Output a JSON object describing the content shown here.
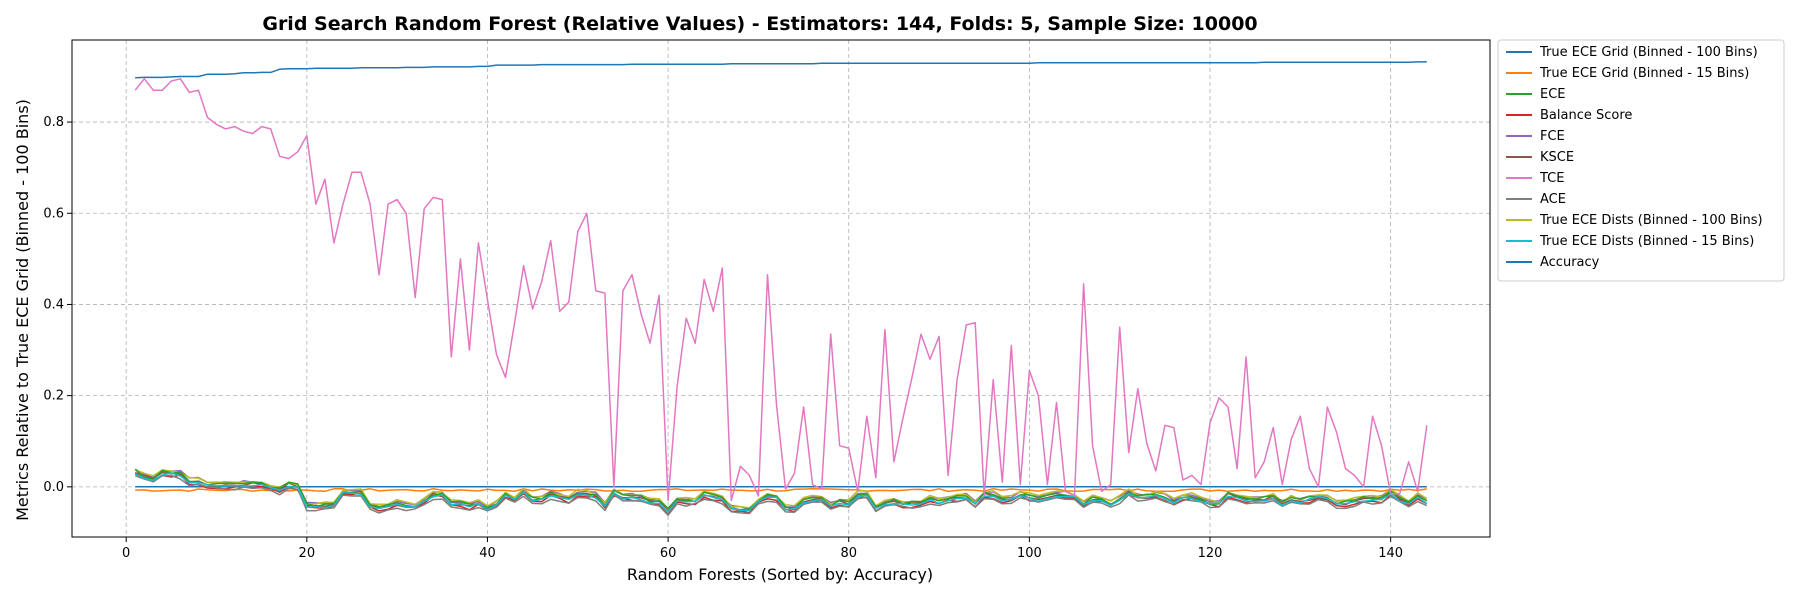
{
  "chart_data": {
    "type": "line",
    "title": "Grid Search Random Forest (Relative Values) - Estimators: 144, Folds: 5, Sample Size: 10000",
    "xlabel": "Random Forests (Sorted by: Accuracy)",
    "ylabel": "Metrics Relative to True ECE Grid (Binned - 100 Bins)",
    "xlim": [
      -6,
      151
    ],
    "ylim": [
      -0.11,
      0.98
    ],
    "xticks": [
      0,
      20,
      40,
      60,
      80,
      100,
      120,
      140
    ],
    "yticks": [
      0.0,
      0.2,
      0.4,
      0.6,
      0.8
    ],
    "grid": true,
    "legend_position": "outside-top-right",
    "series": [
      {
        "name": "True ECE Grid (Binned - 100 Bins)",
        "color": "#1f77b4",
        "kind": "flat",
        "value": 0.0
      },
      {
        "name": "True ECE Grid (Binned - 15 Bins)",
        "color": "#ff7f0e",
        "kind": "shift",
        "base": 0.0,
        "offset": 0.0,
        "jitter": 0.003
      },
      {
        "name": "ECE",
        "color": "#2ca02c",
        "kind": "shift",
        "base": 0.0,
        "offset": 0.0,
        "jitter": 0.004
      },
      {
        "name": "Balance Score",
        "color": "#d62728",
        "kind": "shift",
        "base": 0.0,
        "offset": -0.007,
        "jitter": 0.004
      },
      {
        "name": "FCE",
        "color": "#9467bd",
        "kind": "shift",
        "base": 0.0,
        "offset": 0.003,
        "jitter": 0.003
      },
      {
        "name": "KSCE",
        "color": "#8c564b",
        "kind": "shift",
        "base": 0.0,
        "offset": -0.002,
        "jitter": 0.003
      },
      {
        "name": "TCE",
        "color": "#e377c2",
        "kind": "tce"
      },
      {
        "name": "ACE",
        "color": "#7f7f7f",
        "kind": "shift",
        "base": 0.0,
        "offset": -0.01,
        "jitter": 0.003
      },
      {
        "name": "True ECE Dists (Binned - 100 Bins)",
        "color": "#bcbd22",
        "kind": "shift",
        "base": 0.0,
        "offset": 0.004,
        "jitter": 0.003
      },
      {
        "name": "True ECE Dists (Binned - 15 Bins)",
        "color": "#17becf",
        "kind": "shift",
        "base": 0.0,
        "offset": -0.004,
        "jitter": 0.003
      },
      {
        "name": "Accuracy",
        "color": "#1f77b4",
        "kind": "accuracy"
      }
    ],
    "base_small_values": [
      0.035,
      0.025,
      0.02,
      0.033,
      0.032,
      0.03,
      0.015,
      0.015,
      0.007,
      0.005,
      0.006,
      0.006,
      0.008,
      0.008,
      0.007,
      0.0,
      -0.005,
      0.008,
      0.003,
      -0.04,
      -0.04,
      -0.04,
      -0.038,
      -0.01,
      -0.01,
      -0.01,
      -0.04,
      -0.045,
      -0.042,
      -0.035,
      -0.04,
      -0.04,
      -0.03,
      -0.015,
      -0.015,
      -0.035,
      -0.035,
      -0.04,
      -0.035,
      -0.045,
      -0.035,
      -0.015,
      -0.025,
      -0.01,
      -0.025,
      -0.025,
      -0.015,
      -0.02,
      -0.025,
      -0.012,
      -0.015,
      -0.018,
      -0.04,
      -0.01,
      -0.02,
      -0.02,
      -0.022,
      -0.03,
      -0.03,
      -0.05,
      -0.03,
      -0.03,
      -0.028,
      -0.015,
      -0.02,
      -0.025,
      -0.045,
      -0.048,
      -0.048,
      -0.03,
      -0.02,
      -0.022,
      -0.045,
      -0.045,
      -0.03,
      -0.025,
      -0.025,
      -0.04,
      -0.03,
      -0.035,
      -0.015,
      -0.015,
      -0.045,
      -0.035,
      -0.03,
      -0.035,
      -0.035,
      -0.035,
      -0.025,
      -0.03,
      -0.025,
      -0.022,
      -0.02,
      -0.035,
      -0.015,
      -0.015,
      -0.025,
      -0.025,
      -0.015,
      -0.02,
      -0.025,
      -0.02,
      -0.015,
      -0.015,
      -0.02,
      -0.035,
      -0.025,
      -0.025,
      -0.035,
      -0.025,
      -0.01,
      -0.02,
      -0.02,
      -0.015,
      -0.02,
      -0.03,
      -0.02,
      -0.02,
      -0.025,
      -0.035,
      -0.035,
      -0.015,
      -0.02,
      -0.025,
      -0.025,
      -0.025,
      -0.02,
      -0.035,
      -0.025,
      -0.03,
      -0.025,
      -0.02,
      -0.025,
      -0.035,
      -0.035,
      -0.03,
      -0.025,
      -0.025,
      -0.025,
      -0.01,
      -0.025,
      -0.035,
      -0.02,
      -0.03
    ],
    "tce_values": [
      0.87,
      0.895,
      0.87,
      0.87,
      0.89,
      0.895,
      0.865,
      0.87,
      0.81,
      0.795,
      0.785,
      0.79,
      0.78,
      0.775,
      0.79,
      0.785,
      0.725,
      0.72,
      0.735,
      0.77,
      0.62,
      0.675,
      0.535,
      0.62,
      0.69,
      0.69,
      0.62,
      0.465,
      0.62,
      0.63,
      0.6,
      0.415,
      0.61,
      0.635,
      0.63,
      0.285,
      0.5,
      0.3,
      0.535,
      0.41,
      0.29,
      0.24,
      0.36,
      0.485,
      0.39,
      0.45,
      0.54,
      0.385,
      0.405,
      0.56,
      0.6,
      0.43,
      0.425,
      0.0,
      0.43,
      0.465,
      0.38,
      0.315,
      0.42,
      -0.03,
      0.22,
      0.37,
      0.315,
      0.455,
      0.385,
      0.48,
      -0.03,
      0.045,
      0.025,
      -0.02,
      0.465,
      0.18,
      -0.005,
      0.03,
      0.175,
      0.005,
      -0.005,
      0.335,
      0.09,
      0.085,
      -0.01,
      0.155,
      0.02,
      0.345,
      0.055,
      0.15,
      0.24,
      0.335,
      0.28,
      0.33,
      0.025,
      0.235,
      0.355,
      0.36,
      -0.02,
      0.235,
      0.01,
      0.31,
      0.005,
      0.255,
      0.2,
      0.005,
      0.185,
      -0.01,
      -0.02,
      0.445,
      0.09,
      -0.01,
      0.005,
      0.35,
      0.075,
      0.215,
      0.095,
      0.035,
      0.135,
      0.13,
      0.015,
      0.025,
      0.005,
      0.14,
      0.195,
      0.175,
      0.04,
      0.285,
      0.02,
      0.055,
      0.13,
      0.005,
      0.105,
      0.155,
      0.04,
      0.0,
      0.175,
      0.12,
      0.04,
      0.025,
      0.0,
      0.155,
      0.09,
      -0.015,
      -0.015,
      0.055,
      -0.01,
      0.135
    ],
    "accuracy_values": [
      0.897,
      0.898,
      0.898,
      0.898,
      0.899,
      0.9,
      0.9,
      0.9,
      0.905,
      0.905,
      0.905,
      0.906,
      0.908,
      0.908,
      0.909,
      0.909,
      0.916,
      0.917,
      0.917,
      0.917,
      0.918,
      0.918,
      0.918,
      0.918,
      0.918,
      0.919,
      0.919,
      0.919,
      0.919,
      0.919,
      0.92,
      0.92,
      0.92,
      0.921,
      0.921,
      0.921,
      0.921,
      0.921,
      0.922,
      0.922,
      0.925,
      0.925,
      0.925,
      0.925,
      0.925,
      0.926,
      0.926,
      0.926,
      0.926,
      0.926,
      0.926,
      0.926,
      0.926,
      0.926,
      0.926,
      0.927,
      0.927,
      0.927,
      0.927,
      0.927,
      0.927,
      0.927,
      0.927,
      0.927,
      0.927,
      0.927,
      0.928,
      0.928,
      0.928,
      0.928,
      0.928,
      0.928,
      0.928,
      0.928,
      0.928,
      0.928,
      0.929,
      0.929,
      0.929,
      0.929,
      0.929,
      0.929,
      0.929,
      0.929,
      0.929,
      0.929,
      0.929,
      0.929,
      0.929,
      0.929,
      0.929,
      0.929,
      0.929,
      0.929,
      0.929,
      0.929,
      0.929,
      0.929,
      0.929,
      0.929,
      0.93,
      0.93,
      0.93,
      0.93,
      0.93,
      0.93,
      0.93,
      0.93,
      0.93,
      0.93,
      0.93,
      0.93,
      0.93,
      0.93,
      0.93,
      0.93,
      0.93,
      0.93,
      0.93,
      0.93,
      0.93,
      0.93,
      0.93,
      0.93,
      0.93,
      0.931,
      0.931,
      0.931,
      0.931,
      0.931,
      0.931,
      0.931,
      0.931,
      0.931,
      0.931,
      0.931,
      0.931,
      0.931,
      0.931,
      0.931,
      0.931,
      0.931,
      0.932,
      0.932
    ]
  }
}
